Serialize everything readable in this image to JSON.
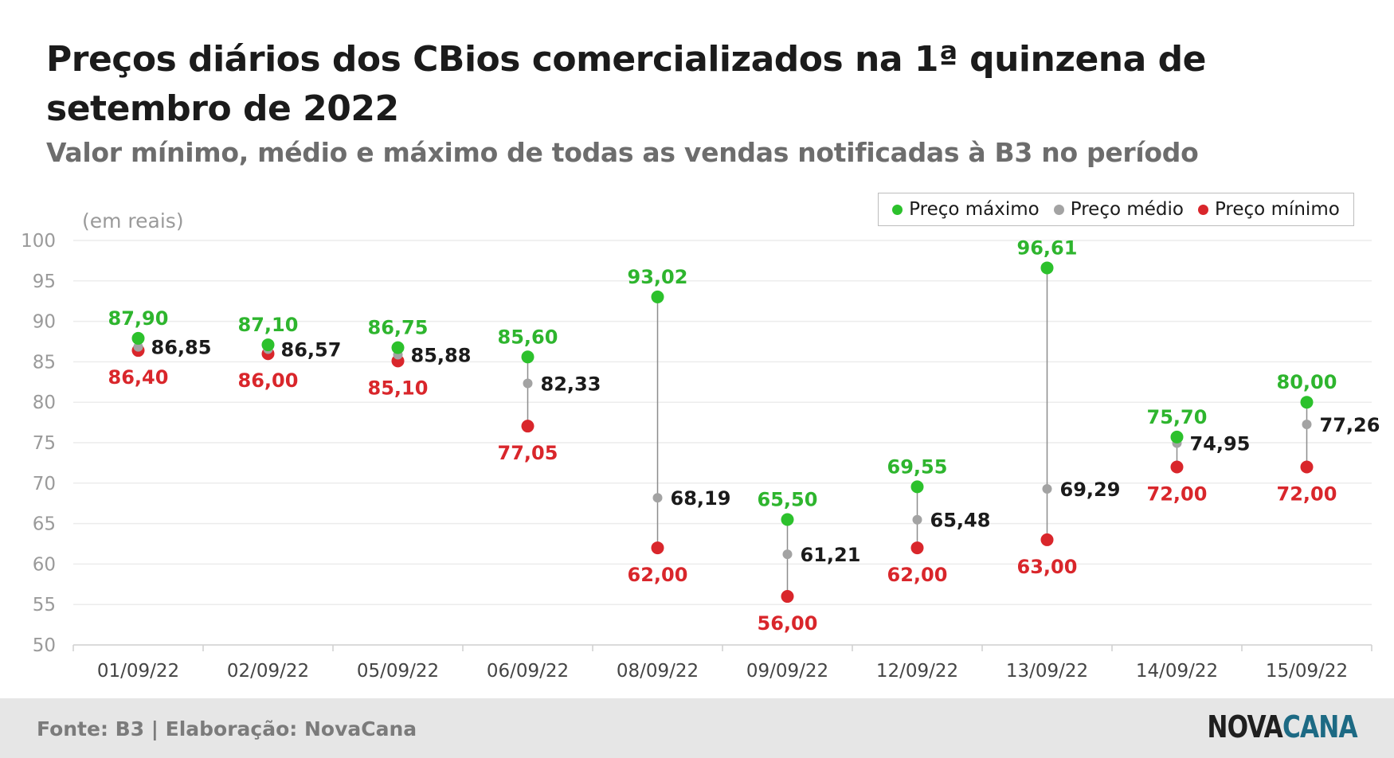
{
  "header": {
    "title": "Preços diários dos CBios comercializados na 1ª quinzena de setembro de 2022",
    "subtitle": "Valor mínimo, médio e máximo de todas as vendas notificadas à B3 no período"
  },
  "legend": {
    "max_label": "Preço máximo",
    "avg_label": "Preço médio",
    "min_label": "Preço mínimo"
  },
  "footer": {
    "source": "Fonte: B3 | Elaboração: NovaCana",
    "logo_part1": "NOVA",
    "logo_part2": "CANA"
  },
  "colors": {
    "max": "#2cc12c",
    "avg": "#a3a3a3",
    "min": "#d9262b",
    "max_text": "#2eb52e",
    "avg_text": "#1b1b1b",
    "min_text": "#d9262b"
  },
  "chart_data": {
    "type": "scatter",
    "ylabel": "(em reais)",
    "ylim": [
      50,
      100
    ],
    "yticks": [
      50,
      55,
      60,
      65,
      70,
      75,
      80,
      85,
      90,
      95,
      100
    ],
    "grid": true,
    "legend_position": "top-right",
    "categories": [
      "01/09/22",
      "02/09/22",
      "05/09/22",
      "06/09/22",
      "08/09/22",
      "09/09/22",
      "12/09/22",
      "13/09/22",
      "14/09/22",
      "15/09/22"
    ],
    "series": [
      {
        "name": "Preço máximo",
        "values": [
          87.9,
          87.1,
          86.75,
          85.6,
          93.02,
          65.5,
          69.55,
          96.61,
          75.7,
          80.0
        ],
        "labels": [
          "87,90",
          "87,10",
          "86,75",
          "85,60",
          "93,02",
          "65,50",
          "69,55",
          "96,61",
          "75,70",
          "80,00"
        ]
      },
      {
        "name": "Preço médio",
        "values": [
          86.85,
          86.57,
          85.88,
          82.33,
          68.19,
          61.21,
          65.48,
          69.29,
          74.95,
          77.26
        ],
        "labels": [
          "86,85",
          "86,57",
          "85,88",
          "82,33",
          "68,19",
          "61,21",
          "65,48",
          "69,29",
          "74,95",
          "77,26"
        ]
      },
      {
        "name": "Preço mínimo",
        "values": [
          86.4,
          86.0,
          85.1,
          77.05,
          62.0,
          56.0,
          62.0,
          63.0,
          72.0,
          72.0
        ],
        "labels": [
          "86,40",
          "86,00",
          "85,10",
          "77,05",
          "62,00",
          "56,00",
          "62,00",
          "63,00",
          "72,00",
          "72,00"
        ]
      }
    ]
  }
}
